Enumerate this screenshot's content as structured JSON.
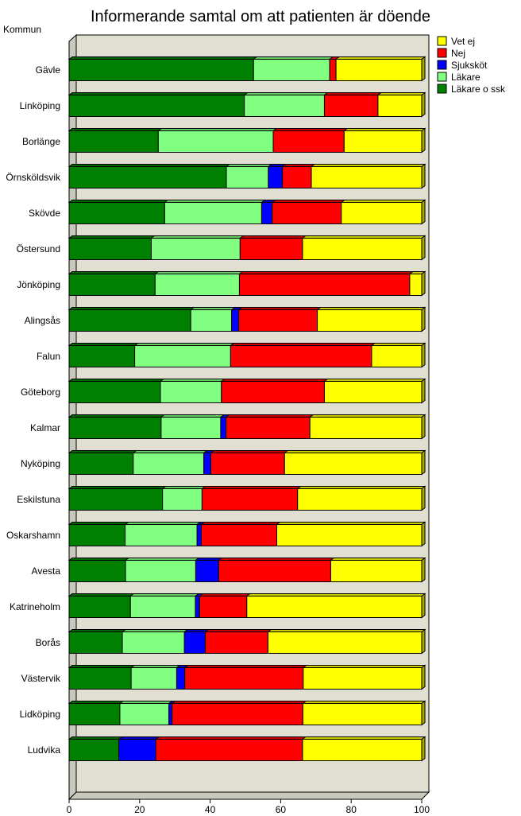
{
  "chart_data": {
    "type": "bar",
    "orientation": "horizontal",
    "stacked": true,
    "title": "Informerande samtal om att patienten är döende",
    "ylabel": "Kommun",
    "xlabel": "",
    "xlim": [
      0,
      100
    ],
    "xticks": [
      0,
      20,
      40,
      60,
      80,
      100
    ],
    "categories": [
      "Gävle",
      "Linköping",
      "Borlänge",
      "Örnsköldsvik",
      "Skövde",
      "Östersund",
      "Jönköping",
      "Alingsås",
      "Falun",
      "Göteborg",
      "Kalmar",
      "Nyköping",
      "Eskilstuna",
      "Oskarshamn",
      "Avesta",
      "Katrineholm",
      "Borås",
      "Västervik",
      "Lidköping",
      "Ludvika"
    ],
    "series": [
      {
        "name": "Läkare o ssk",
        "color": "#008000",
        "values": [
          52.3,
          49.7,
          25.3,
          44.6,
          27.1,
          23.3,
          24.4,
          34.5,
          18.6,
          25.9,
          26.1,
          18.2,
          26.5,
          15.9,
          16.0,
          17.4,
          15.1,
          17.6,
          14.4,
          14.1
        ]
      },
      {
        "name": "Läkare",
        "color": "#80ff80",
        "values": [
          21.6,
          22.7,
          32.6,
          11.9,
          27.5,
          25.2,
          23.9,
          11.6,
          27.2,
          17.3,
          16.9,
          20.0,
          11.2,
          20.4,
          19.9,
          18.4,
          17.6,
          12.9,
          13.9,
          0
        ]
      },
      {
        "name": "Sjuksköt",
        "color": "#0000ff",
        "values": [
          0,
          0,
          0,
          4.0,
          3.0,
          0,
          0,
          2.0,
          0,
          0,
          1.5,
          2.0,
          0,
          1.2,
          6.5,
          1.2,
          5.9,
          2.3,
          0.9,
          10.5
        ]
      },
      {
        "name": "Nej",
        "color": "#ff0000",
        "values": [
          1.8,
          15.2,
          20.1,
          8.2,
          19.6,
          17.7,
          48.3,
          22.3,
          40.0,
          29.2,
          23.8,
          20.9,
          27.1,
          21.4,
          31.8,
          13.4,
          17.8,
          33.6,
          37.1,
          41.6
        ]
      },
      {
        "name": "Vet ej",
        "color": "#ffff00",
        "values": [
          24.3,
          12.4,
          22.0,
          31.3,
          22.8,
          33.8,
          3.4,
          29.6,
          14.2,
          27.6,
          31.7,
          38.9,
          35.2,
          41.1,
          25.8,
          49.6,
          43.6,
          33.6,
          33.7,
          33.8
        ]
      }
    ],
    "legend": {
      "position": "top-right",
      "order": [
        "Vet ej",
        "Nej",
        "Sjuksköt",
        "Läkare",
        "Läkare o ssk"
      ]
    }
  }
}
